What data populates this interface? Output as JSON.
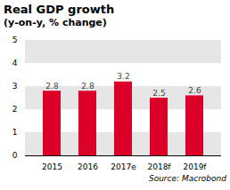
{
  "chart_data": {
    "type": "bar",
    "title": "Real GDP growth",
    "subtitle": "(y-on-y, % change)",
    "caption": "Source: Macrobond",
    "categories": [
      "2015",
      "2016",
      "2017e",
      "2018f",
      "2019f"
    ],
    "values": [
      2.8,
      2.8,
      3.2,
      2.5,
      2.6
    ],
    "color": "#dc0028",
    "ylim": [
      0,
      5
    ],
    "yticks": [
      0,
      1,
      2,
      3,
      4,
      5
    ],
    "grid": true,
    "data_labels": true
  }
}
